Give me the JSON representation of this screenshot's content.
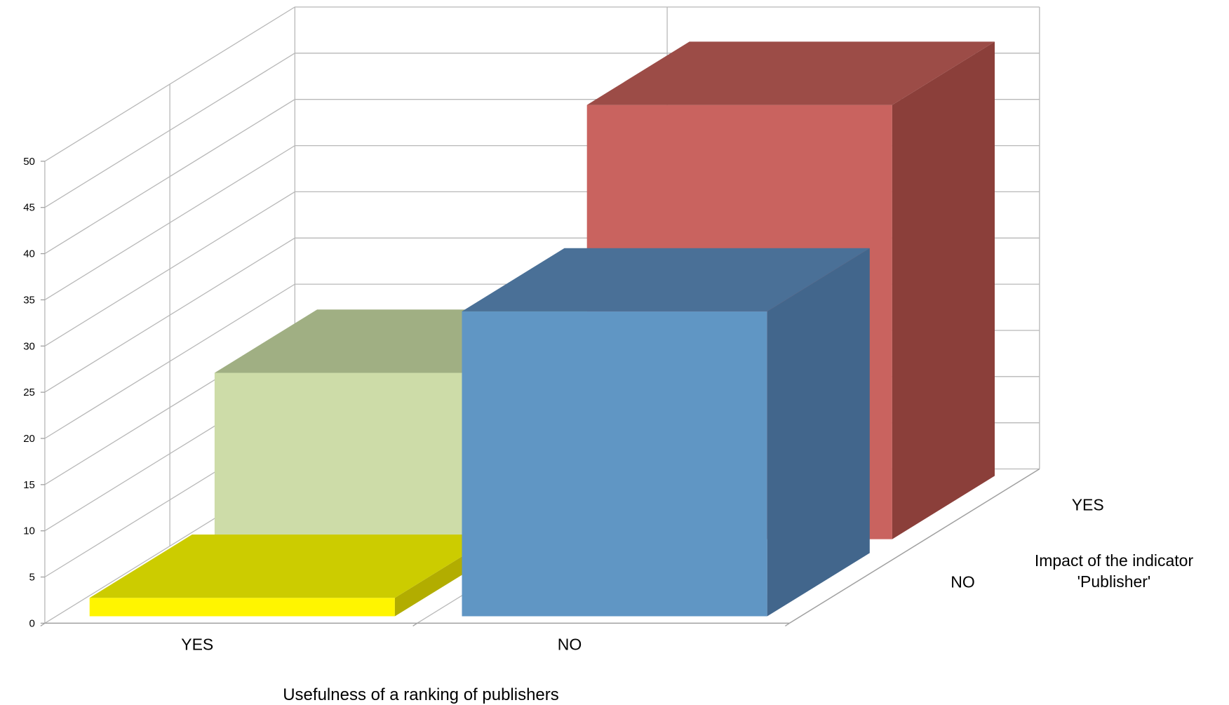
{
  "chart_data": {
    "type": "bar",
    "subtype": "3d-bar",
    "xlabel": "Usefulness of a ranking of publishers",
    "zlabel": "Impact of the indicator 'Publisher'",
    "x_categories": [
      "YES",
      "NO"
    ],
    "z_categories": [
      "NO",
      "YES"
    ],
    "ylim": [
      0,
      50
    ],
    "yticks": [
      "0",
      "5",
      "10",
      "15",
      "20",
      "25",
      "30",
      "35",
      "40",
      "45",
      "50"
    ],
    "grid": true,
    "legend": "none",
    "bars": [
      {
        "x": "YES",
        "z": "NO",
        "value": 2,
        "colors": {
          "front": "#fff500",
          "top": "#cccc00",
          "side": "#b2ad00"
        }
      },
      {
        "x": "YES",
        "z": "YES",
        "value": 18,
        "colors": {
          "front": "#cddca8",
          "top": "#a0af83",
          "side": "#8a9573"
        }
      },
      {
        "x": "NO",
        "z": "NO",
        "value": 33,
        "colors": {
          "front": "#6096c4",
          "top": "#4a7097",
          "side": "#42668c"
        }
      },
      {
        "x": "NO",
        "z": "YES",
        "value": 47,
        "colors": {
          "front": "#c9635f",
          "top": "#9c4c47",
          "side": "#8b3f3a"
        }
      }
    ]
  }
}
